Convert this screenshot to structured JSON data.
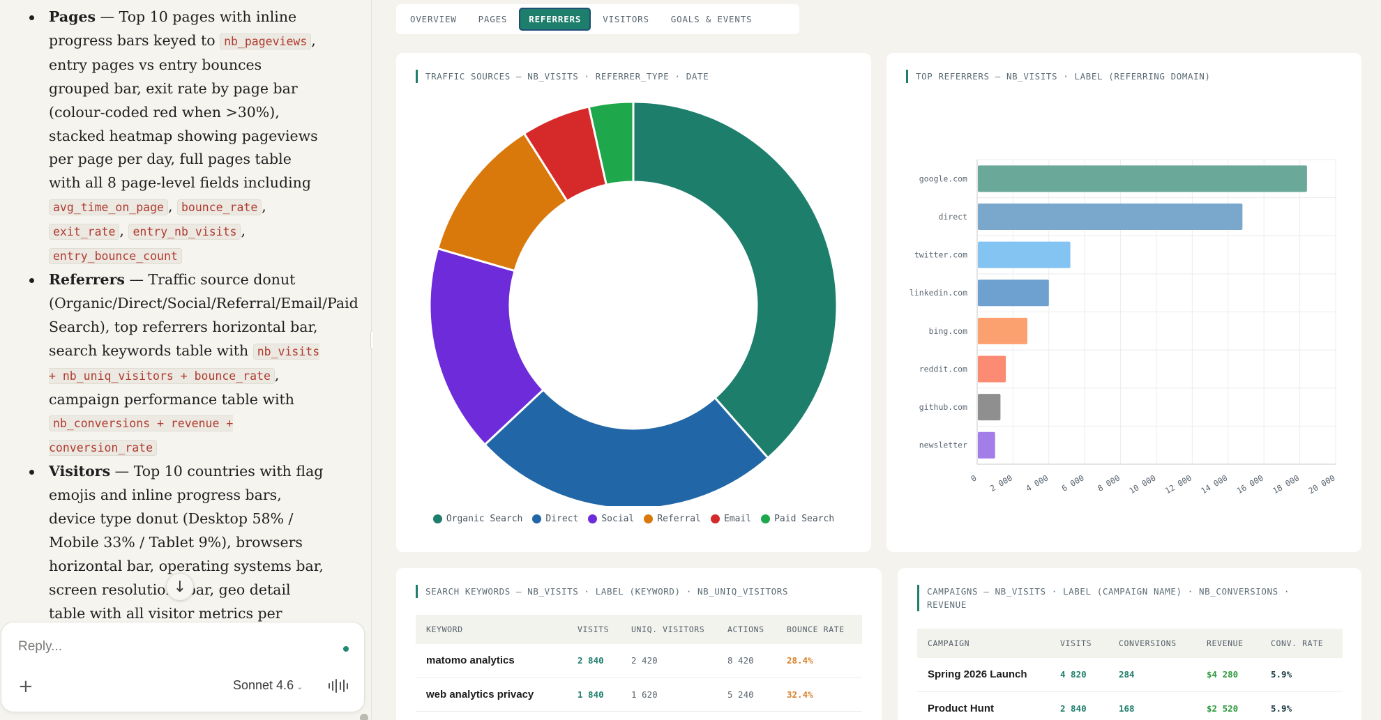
{
  "chat": {
    "bullets": [
      {
        "heading": "Pages",
        "segments": [
          {
            "t": " — Top 10 pages with inline progress bars keyed to "
          },
          {
            "c": "nb_pageviews"
          },
          {
            "t": ", entry pages vs entry bounces grouped bar, exit rate by page bar (colour-coded red when >30%), stacked heatmap showing pageviews per page per day, full pages table with all 8 page-level fields including "
          },
          {
            "c": "avg_time_on_page"
          },
          {
            "t": ", "
          },
          {
            "c": "bounce_rate"
          },
          {
            "t": ", "
          },
          {
            "c": "exit_rate"
          },
          {
            "t": ", "
          },
          {
            "c": "entry_nb_visits"
          },
          {
            "t": ", "
          },
          {
            "c": "entry_bounce_count"
          }
        ]
      },
      {
        "heading": "Referrers",
        "segments": [
          {
            "t": " — Traffic source donut (Organic/Direct/Social/Referral/Email/Paid Search), top referrers horizontal bar, search keywords table with "
          },
          {
            "c": "nb_visits + nb_uniq_visitors + bounce_rate"
          },
          {
            "t": ", campaign performance table with "
          },
          {
            "c": "nb_conversions + revenue + conversion_rate"
          }
        ]
      },
      {
        "heading": "Visitors",
        "segments": [
          {
            "t": " — Top 10 countries with flag emojis and inline progress bars, device type donut (Desktop 58% / Mobile 33% / Tablet 9%), browsers horizontal bar, operating systems bar, screen resolutions bar, geo detail table with all visitor metrics per country"
          }
        ]
      }
    ],
    "composer": {
      "placeholder": "Reply...",
      "model": "Sonnet 4.6"
    },
    "icons": [
      "arrow-down-icon",
      "plus-icon",
      "chevron-down-icon",
      "voice-waveform-icon"
    ]
  },
  "dashboard": {
    "tabs": [
      {
        "label": "OVERVIEW",
        "active": false
      },
      {
        "label": "PAGES",
        "active": false
      },
      {
        "label": "REFERRERS",
        "active": true
      },
      {
        "label": "VISITORS",
        "active": false
      },
      {
        "label": "GOALS & EVENTS",
        "active": false
      }
    ],
    "traffic_title": "TRAFFIC SOURCES — NB_VISITS · REFERRER_TYPE · DATE",
    "referrers_title": "TOP REFERRERS — NB_VISITS · LABEL (REFERRING DOMAIN)",
    "keywords_title": "SEARCH KEYWORDS — NB_VISITS · LABEL (KEYWORD) · NB_UNIQ_VISITORS",
    "campaigns_title_line1": "CAMPAIGNS — NB_VISITS · LABEL (CAMPAIGN NAME) · NB_CONVERSIONS ·",
    "campaigns_title_line2": "REVENUE",
    "keywords_table": {
      "headers": [
        "KEYWORD",
        "VISITS",
        "UNIQ. VISITORS",
        "ACTIONS",
        "BOUNCE RATE"
      ],
      "rows": [
        [
          "matomo analytics",
          "2 840",
          "2 420",
          "8 420",
          "28.4%"
        ],
        [
          "web analytics privacy",
          "1 840",
          "1 620",
          "5 240",
          "32.4%"
        ]
      ]
    },
    "campaigns_table": {
      "headers": [
        "CAMPAIGN",
        "VISITS",
        "CONVERSIONS",
        "REVENUE",
        "CONV. RATE"
      ],
      "rows": [
        [
          "Spring 2026 Launch",
          "4 820",
          "284",
          "$4 280",
          "5.9%"
        ],
        [
          "Product Hunt",
          "2 840",
          "168",
          "$2 520",
          "5.9%"
        ]
      ]
    }
  },
  "chart_data": [
    {
      "type": "pie",
      "donut": true,
      "title": "TRAFFIC SOURCES — NB_VISITS · REFERRER_TYPE · DATE",
      "categories": [
        "Organic Search",
        "Direct",
        "Social",
        "Referral",
        "Email",
        "Paid Search"
      ],
      "values": [
        38.5,
        24.5,
        16.5,
        11.5,
        5.5,
        3.5
      ],
      "colors": [
        "#1e7e6c",
        "#2166a6",
        "#6d2bd9",
        "#d9780b",
        "#d62a2a",
        "#1fa84b"
      ],
      "legend": "bottom"
    },
    {
      "type": "bar",
      "orientation": "horizontal",
      "title": "TOP REFERRERS — NB_VISITS · LABEL (REFERRING DOMAIN)",
      "categories": [
        "google.com",
        "direct",
        "twitter.com",
        "linkedin.com",
        "bing.com",
        "reddit.com",
        "github.com",
        "newsletter"
      ],
      "values": [
        18400,
        14800,
        5200,
        4000,
        2800,
        1600,
        1300,
        1000
      ],
      "colors": [
        "#6aa89a",
        "#7aa7cc",
        "#84c4f2",
        "#6ea1d0",
        "#fba06f",
        "#fb8b72",
        "#8f8f8f",
        "#a37de8"
      ],
      "xlim": [
        0,
        20000
      ],
      "xticks": [
        "0",
        "2 000",
        "4 000",
        "6 000",
        "8 000",
        "10 000",
        "12 000",
        "14 000",
        "16 000",
        "18 000",
        "20 000"
      ],
      "grid": true
    }
  ]
}
